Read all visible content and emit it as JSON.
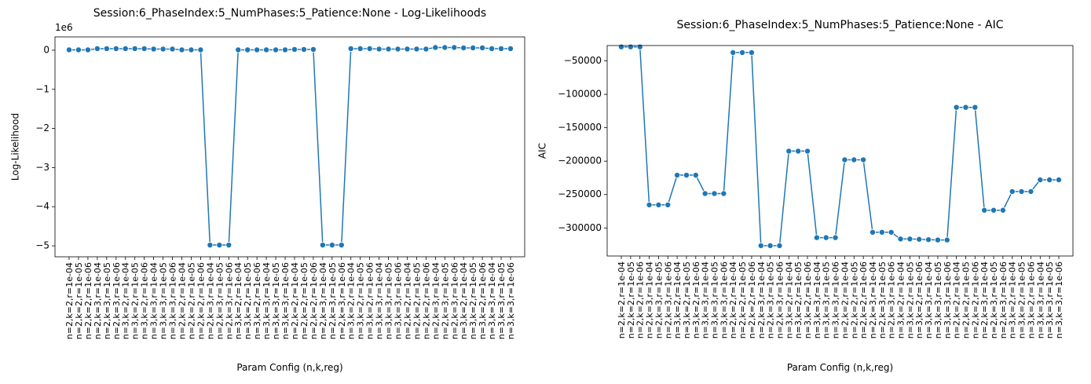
{
  "chart_data": [
    {
      "type": "line",
      "title": "Session:6_PhaseIndex:5_NumPhases:5_Patience:None - Log-Likelihoods",
      "x_label": "Param Config (n,k,reg)",
      "y_label": "Log-Likelihood",
      "axis_offset": "1e6",
      "categories": [
        "n=2,k=2,r=1e-04",
        "n=2,k=2,r=1e-05",
        "n=2,k=2,r=1e-06",
        "n=2,k=3,r=1e-04",
        "n=2,k=3,r=1e-05",
        "n=2,k=3,r=1e-06",
        "n=3,k=2,r=1e-04",
        "n=3,k=2,r=1e-05",
        "n=3,k=2,r=1e-06",
        "n=3,k=3,r=1e-04",
        "n=3,k=3,r=1e-05",
        "n=3,k=3,r=1e-06",
        "n=2,k=2,r=1e-04",
        "n=2,k=2,r=1e-05",
        "n=2,k=2,r=1e-06",
        "n=2,k=3,r=1e-04",
        "n=2,k=3,r=1e-05",
        "n=2,k=3,r=1e-06",
        "n=3,k=2,r=1e-04",
        "n=3,k=2,r=1e-05",
        "n=3,k=2,r=1e-06",
        "n=3,k=3,r=1e-04",
        "n=3,k=3,r=1e-05",
        "n=3,k=3,r=1e-06",
        "n=2,k=2,r=1e-04",
        "n=2,k=2,r=1e-05",
        "n=2,k=2,r=1e-06",
        "n=2,k=3,r=1e-04",
        "n=2,k=3,r=1e-05",
        "n=2,k=3,r=1e-06",
        "n=3,k=2,r=1e-04",
        "n=3,k=2,r=1e-05",
        "n=3,k=2,r=1e-06",
        "n=3,k=3,r=1e-04",
        "n=3,k=3,r=1e-05",
        "n=3,k=3,r=1e-06",
        "n=2,k=2,r=1e-04",
        "n=2,k=2,r=1e-05",
        "n=2,k=2,r=1e-06",
        "n=2,k=3,r=1e-04",
        "n=2,k=3,r=1e-05",
        "n=2,k=3,r=1e-06",
        "n=3,k=2,r=1e-04",
        "n=3,k=2,r=1e-05",
        "n=3,k=2,r=1e-06",
        "n=3,k=3,r=1e-04",
        "n=3,k=3,r=1e-05",
        "n=3,k=3,r=1e-06"
      ],
      "values": [
        0.01,
        0.01,
        0.01,
        0.04,
        0.04,
        0.04,
        0.04,
        0.04,
        0.04,
        0.03,
        0.03,
        0.03,
        0.01,
        0.01,
        0.01,
        -4.98,
        -4.98,
        -4.98,
        0.01,
        0.01,
        0.01,
        0.01,
        0.01,
        0.01,
        0.02,
        0.02,
        0.02,
        -4.98,
        -4.98,
        -4.98,
        0.04,
        0.04,
        0.04,
        0.03,
        0.03,
        0.03,
        0.03,
        0.03,
        0.03,
        0.07,
        0.07,
        0.07,
        0.06,
        0.06,
        0.06,
        0.04,
        0.04,
        0.04
      ],
      "color": "#1f77b4",
      "ylim": [
        -5.28,
        0.34
      ],
      "yticks": [
        0,
        {
          "value": -1,
          "label": "−1"
        },
        {
          "value": -2,
          "label": "−2"
        },
        {
          "value": -3,
          "label": "−3"
        },
        {
          "value": -4,
          "label": "−4"
        },
        {
          "value": -5,
          "label": "−5"
        }
      ]
    },
    {
      "type": "line",
      "title": "Session:6_PhaseIndex:5_NumPhases:5_Patience:None - AIC",
      "x_label": "Param Config (n,k,reg)",
      "y_label": "AIC",
      "categories": [
        "n=2,k=2,r=1e-04",
        "n=2,k=2,r=1e-05",
        "n=2,k=2,r=1e-06",
        "n=2,k=3,r=1e-04",
        "n=2,k=3,r=1e-05",
        "n=2,k=3,r=1e-06",
        "n=3,k=2,r=1e-04",
        "n=3,k=2,r=1e-05",
        "n=3,k=2,r=1e-06",
        "n=3,k=3,r=1e-04",
        "n=3,k=3,r=1e-05",
        "n=3,k=3,r=1e-06",
        "n=2,k=2,r=1e-04",
        "n=2,k=2,r=1e-05",
        "n=2,k=2,r=1e-06",
        "n=2,k=3,r=1e-04",
        "n=2,k=3,r=1e-05",
        "n=2,k=3,r=1e-06",
        "n=3,k=2,r=1e-04",
        "n=3,k=2,r=1e-05",
        "n=3,k=2,r=1e-06",
        "n=3,k=3,r=1e-04",
        "n=3,k=3,r=1e-05",
        "n=3,k=3,r=1e-06",
        "n=2,k=2,r=1e-04",
        "n=2,k=2,r=1e-05",
        "n=2,k=2,r=1e-06",
        "n=2,k=3,r=1e-04",
        "n=2,k=3,r=1e-05",
        "n=2,k=3,r=1e-06",
        "n=3,k=2,r=1e-04",
        "n=3,k=2,r=1e-05",
        "n=3,k=2,r=1e-06",
        "n=3,k=3,r=1e-04",
        "n=3,k=3,r=1e-05",
        "n=3,k=3,r=1e-06",
        "n=2,k=2,r=1e-04",
        "n=2,k=2,r=1e-05",
        "n=2,k=2,r=1e-06",
        "n=2,k=3,r=1e-04",
        "n=2,k=3,r=1e-05",
        "n=2,k=3,r=1e-06",
        "n=3,k=2,r=1e-04",
        "n=3,k=2,r=1e-05",
        "n=3,k=2,r=1e-06",
        "n=3,k=3,r=1e-04",
        "n=3,k=3,r=1e-05",
        "n=3,k=3,r=1e-06"
      ],
      "values": [
        -29000,
        -29000,
        -29000,
        -265500,
        -265500,
        -265500,
        -221000,
        -221000,
        -221000,
        -248500,
        -248500,
        -248500,
        -37500,
        -37500,
        -37500,
        -326500,
        -326500,
        -326500,
        -185000,
        -185000,
        -185000,
        -314500,
        -314500,
        -314500,
        -198000,
        -198000,
        -198000,
        -306500,
        -306500,
        -306500,
        -316500,
        -316500,
        -317000,
        -317500,
        -318000,
        -318000,
        -119500,
        -119500,
        -119500,
        -273500,
        -273500,
        -273500,
        -245500,
        -245500,
        -245500,
        -228000,
        -228000,
        -228000
      ],
      "color": "#1f77b4",
      "ylim": [
        -342000,
        -27000
      ],
      "yticks": [
        {
          "value": -50000,
          "label": "−50000"
        },
        {
          "value": -100000,
          "label": "−100000"
        },
        {
          "value": -150000,
          "label": "−150000"
        },
        {
          "value": -200000,
          "label": "−200000"
        },
        {
          "value": -250000,
          "label": "−250000"
        },
        {
          "value": -300000,
          "label": "−300000"
        }
      ]
    }
  ]
}
